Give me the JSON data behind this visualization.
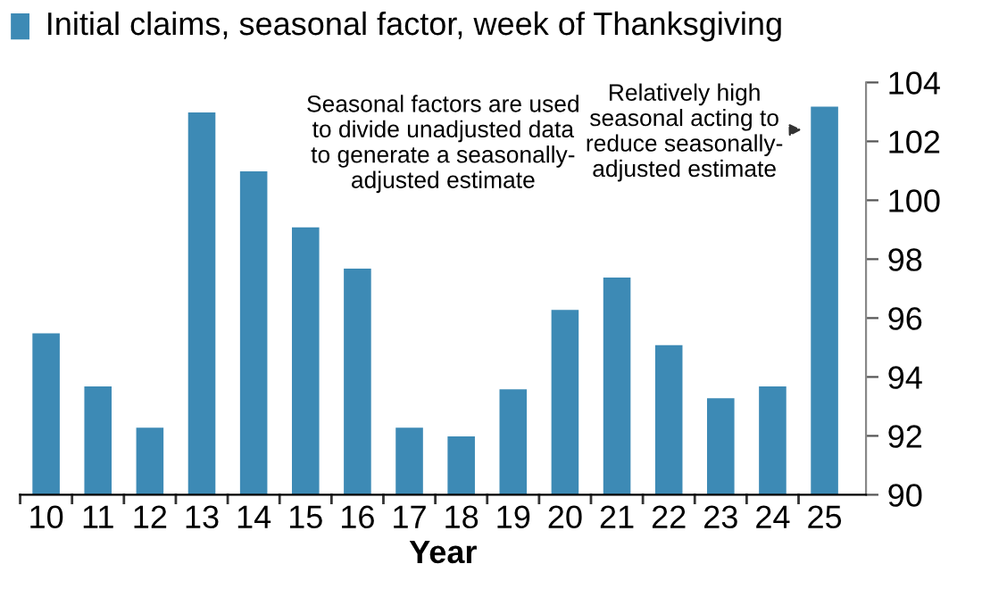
{
  "chart_data": {
    "type": "bar",
    "title": "Initial claims, seasonal factor, week of Thanksgiving",
    "xlabel": "Year",
    "categories": [
      "10",
      "11",
      "12",
      "13",
      "14",
      "15",
      "16",
      "17",
      "18",
      "19",
      "20",
      "21",
      "22",
      "23",
      "24",
      "25"
    ],
    "values": [
      95.5,
      93.7,
      92.3,
      103.0,
      101.0,
      99.1,
      97.7,
      92.3,
      92.0,
      93.6,
      96.3,
      97.4,
      95.1,
      93.3,
      93.7,
      103.2
    ],
    "color": "#3d8ab5",
    "ylim": [
      90,
      104
    ],
    "yticks": [
      90,
      92,
      94,
      96,
      98,
      100,
      102,
      104
    ],
    "grid": false,
    "annotations": [
      "Seasonal factors are used\nto divide unadjusted data\nto generate a seasonally-\nadjusted estimate",
      {
        "text": "Relatively high\nseasonal acting to\nreduce seasonally-\nadjusted estimate",
        "x": "25",
        "y": 103.2
      }
    ]
  }
}
